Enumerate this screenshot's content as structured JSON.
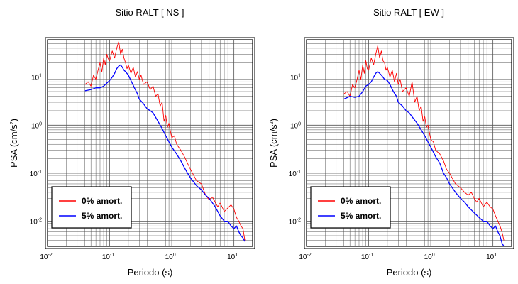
{
  "chart_data": [
    {
      "type": "line",
      "title": "Sitio RALT [ NS ]",
      "xlabel": "Periodo (s)",
      "ylabel": "PSA (cm/s",
      "ylabel_sup": "2",
      "ylabel_end": ")",
      "xscale": "log",
      "yscale": "log",
      "xlim": [
        0.01,
        20
      ],
      "ylim": [
        0.003,
        60
      ],
      "grid": true,
      "legend_position": "bottom-left",
      "x_ticks": [
        {
          "base": "10",
          "exp": "-2"
        },
        {
          "base": "10",
          "exp": "-1"
        },
        {
          "base": "10",
          "exp": "0"
        },
        {
          "base": "10",
          "exp": "1"
        }
      ],
      "y_ticks": [
        {
          "base": "10",
          "exp": "-2"
        },
        {
          "base": "10",
          "exp": "-1"
        },
        {
          "base": "10",
          "exp": "0"
        },
        {
          "base": "10",
          "exp": "1"
        }
      ],
      "series": [
        {
          "name": "0% amort.",
          "color": "#ff0000",
          "x": [
            0.04,
            0.045,
            0.05,
            0.055,
            0.06,
            0.065,
            0.07,
            0.075,
            0.08,
            0.085,
            0.09,
            0.095,
            0.1,
            0.11,
            0.12,
            0.13,
            0.14,
            0.15,
            0.16,
            0.17,
            0.18,
            0.19,
            0.2,
            0.22,
            0.24,
            0.26,
            0.28,
            0.3,
            0.32,
            0.35,
            0.4,
            0.45,
            0.5,
            0.55,
            0.6,
            0.65,
            0.7,
            0.75,
            0.8,
            0.85,
            0.9,
            0.95,
            1.0,
            1.1,
            1.2,
            1.4,
            1.6,
            1.8,
            2.0,
            2.5,
            3.0,
            3.5,
            4.0,
            4.5,
            5.0,
            5.5,
            6.0,
            7.0,
            8.0,
            9.0,
            10.0,
            11.0,
            12.0,
            13.0,
            14.0,
            15.0
          ],
          "y": [
            7.0,
            8.0,
            6.5,
            11.0,
            9.0,
            14.0,
            20.0,
            13.0,
            25.0,
            18.0,
            30.0,
            24.0,
            22.0,
            35.0,
            25.0,
            40.0,
            55.0,
            30.0,
            38.0,
            25.0,
            20.0,
            15.0,
            18.0,
            12.0,
            16.0,
            10.0,
            13.0,
            9.0,
            11.0,
            7.0,
            8.0,
            5.5,
            6.5,
            4.0,
            4.5,
            2.5,
            3.0,
            1.2,
            1.6,
            0.9,
            1.1,
            0.75,
            0.55,
            0.6,
            0.4,
            0.3,
            0.22,
            0.16,
            0.12,
            0.07,
            0.06,
            0.035,
            0.028,
            0.032,
            0.025,
            0.02,
            0.024,
            0.016,
            0.019,
            0.022,
            0.018,
            0.012,
            0.01,
            0.008,
            0.007,
            0.004
          ]
        },
        {
          "name": "5% amort.",
          "color": "#0000ff",
          "x": [
            0.04,
            0.05,
            0.06,
            0.07,
            0.08,
            0.09,
            0.1,
            0.11,
            0.12,
            0.13,
            0.14,
            0.15,
            0.16,
            0.17,
            0.18,
            0.2,
            0.22,
            0.25,
            0.28,
            0.3,
            0.35,
            0.4,
            0.45,
            0.5,
            0.6,
            0.7,
            0.8,
            0.9,
            1.0,
            1.2,
            1.4,
            1.6,
            1.8,
            2.0,
            2.5,
            3.0,
            3.5,
            4.0,
            5.0,
            6.0,
            7.0,
            8.0,
            9.0,
            10.0,
            11.0,
            12.0,
            13.0,
            14.0,
            15.0
          ],
          "y": [
            5.2,
            5.5,
            6.0,
            6.0,
            6.5,
            7.5,
            8.5,
            10.0,
            12.0,
            15.0,
            17.0,
            18.0,
            16.0,
            14.0,
            13.0,
            11.0,
            8.5,
            6.0,
            4.5,
            3.5,
            2.8,
            2.2,
            2.0,
            1.8,
            1.2,
            0.85,
            0.6,
            0.45,
            0.35,
            0.25,
            0.18,
            0.13,
            0.1,
            0.08,
            0.055,
            0.045,
            0.035,
            0.03,
            0.02,
            0.013,
            0.01,
            0.01,
            0.008,
            0.007,
            0.008,
            0.006,
            0.005,
            0.0045,
            0.0038
          ]
        }
      ]
    },
    {
      "type": "line",
      "title": "Sitio RALT [ EW ]",
      "xlabel": "Periodo (s)",
      "ylabel": "PSA (cm/s",
      "ylabel_sup": "2",
      "ylabel_end": ")",
      "xscale": "log",
      "yscale": "log",
      "xlim": [
        0.01,
        20
      ],
      "ylim": [
        0.003,
        60
      ],
      "grid": true,
      "legend_position": "bottom-left",
      "x_ticks": [
        {
          "base": "10",
          "exp": "-2"
        },
        {
          "base": "10",
          "exp": "-1"
        },
        {
          "base": "10",
          "exp": "0"
        },
        {
          "base": "10",
          "exp": "1"
        }
      ],
      "y_ticks": [
        {
          "base": "10",
          "exp": "-2"
        },
        {
          "base": "10",
          "exp": "-1"
        },
        {
          "base": "10",
          "exp": "0"
        },
        {
          "base": "10",
          "exp": "1"
        }
      ],
      "series": [
        {
          "name": "0% amort.",
          "color": "#ff0000",
          "x": [
            0.04,
            0.045,
            0.05,
            0.055,
            0.06,
            0.065,
            0.07,
            0.075,
            0.08,
            0.085,
            0.09,
            0.095,
            0.1,
            0.11,
            0.12,
            0.13,
            0.14,
            0.15,
            0.16,
            0.17,
            0.18,
            0.19,
            0.2,
            0.22,
            0.24,
            0.26,
            0.28,
            0.3,
            0.32,
            0.35,
            0.4,
            0.45,
            0.5,
            0.55,
            0.6,
            0.65,
            0.7,
            0.75,
            0.8,
            0.85,
            0.9,
            0.95,
            1.0,
            1.1,
            1.2,
            1.4,
            1.6,
            1.8,
            2.0,
            2.5,
            3.0,
            3.5,
            4.0,
            4.5,
            5.0,
            5.5,
            6.0,
            7.0,
            8.0,
            9.0,
            10.0,
            11.0,
            12.0,
            13.0,
            14.0,
            15.0
          ],
          "y": [
            4.5,
            5.0,
            4.0,
            7.0,
            6.0,
            9.0,
            14.0,
            9.0,
            18.0,
            12.0,
            22.0,
            15.0,
            14.0,
            25.0,
            18.0,
            30.0,
            45.0,
            25.0,
            35.0,
            22.0,
            20.0,
            14.0,
            16.0,
            10.0,
            14.0,
            8.0,
            12.0,
            7.0,
            9.0,
            5.0,
            6.0,
            4.0,
            8.0,
            3.0,
            4.0,
            2.0,
            2.5,
            1.2,
            1.5,
            0.9,
            1.0,
            0.7,
            0.5,
            0.45,
            0.3,
            0.25,
            0.18,
            0.12,
            0.1,
            0.06,
            0.05,
            0.04,
            0.035,
            0.04,
            0.03,
            0.025,
            0.03,
            0.02,
            0.025,
            0.02,
            0.018,
            0.013,
            0.01,
            0.008,
            0.006,
            0.004
          ]
        },
        {
          "name": "5% amort.",
          "color": "#0000ff",
          "x": [
            0.04,
            0.05,
            0.06,
            0.07,
            0.08,
            0.09,
            0.1,
            0.11,
            0.12,
            0.13,
            0.14,
            0.15,
            0.16,
            0.17,
            0.18,
            0.2,
            0.22,
            0.25,
            0.28,
            0.3,
            0.35,
            0.4,
            0.45,
            0.5,
            0.6,
            0.7,
            0.8,
            0.9,
            1.0,
            1.2,
            1.4,
            1.6,
            1.8,
            2.0,
            2.5,
            3.0,
            3.5,
            4.0,
            5.0,
            6.0,
            7.0,
            8.0,
            9.0,
            10.0,
            11.0,
            12.0,
            13.0,
            14.0,
            15.0
          ],
          "y": [
            3.5,
            4.0,
            3.8,
            4.0,
            5.0,
            6.5,
            7.0,
            8.0,
            10.0,
            12.0,
            13.0,
            12.0,
            11.0,
            10.0,
            9.0,
            8.5,
            7.0,
            5.0,
            4.0,
            3.0,
            2.5,
            2.0,
            1.8,
            1.5,
            1.1,
            0.8,
            0.6,
            0.45,
            0.35,
            0.22,
            0.16,
            0.1,
            0.08,
            0.06,
            0.04,
            0.03,
            0.025,
            0.02,
            0.015,
            0.012,
            0.01,
            0.01,
            0.008,
            0.007,
            0.008,
            0.006,
            0.005,
            0.0035,
            0.003
          ]
        }
      ]
    }
  ]
}
